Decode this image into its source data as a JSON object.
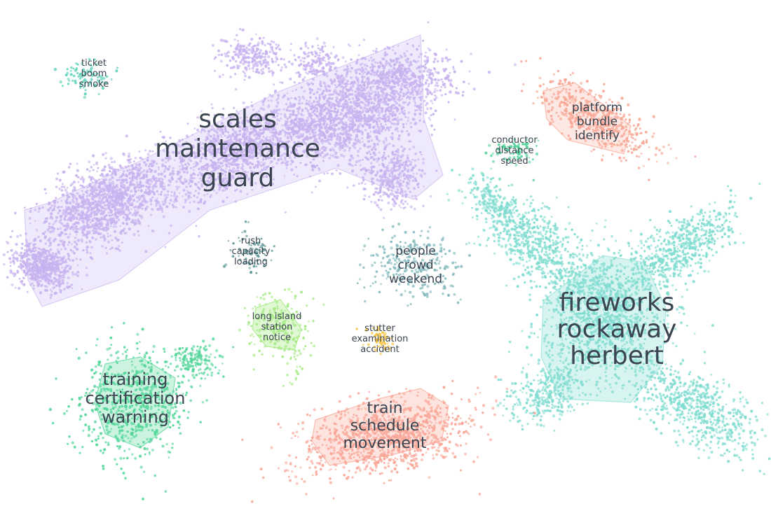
{
  "chart_data": {
    "type": "scatter",
    "grid": false,
    "legend": "none",
    "clusters": [
      {
        "id": "scales",
        "label": [
          "scales",
          "maintenance",
          "guard"
        ],
        "color": "#c7b2ef"
      },
      {
        "id": "ticket",
        "label": [
          "ticket",
          "boom",
          "smoke"
        ],
        "color": "#5fd3bb"
      },
      {
        "id": "platform",
        "label": [
          "platform",
          "bundle",
          "identify"
        ],
        "color": "#f8a592"
      },
      {
        "id": "conductor",
        "label": [
          "conductor",
          "distance",
          "speed"
        ],
        "color": "#4ed29a"
      },
      {
        "id": "rush",
        "label": [
          "rush",
          "capacity",
          "loading"
        ],
        "color": "#5f9a98"
      },
      {
        "id": "people",
        "label": [
          "people",
          "crowd",
          "weekend"
        ],
        "color": "#82b9bd"
      },
      {
        "id": "long-island",
        "label": [
          "long island",
          "station",
          "notice"
        ],
        "color": "#a6ea85"
      },
      {
        "id": "stutter",
        "label": [
          "stutter",
          "examination",
          "accident"
        ],
        "color": "#f9c43e"
      },
      {
        "id": "fireworks",
        "label": [
          "fireworks",
          "rockaway",
          "herbert"
        ],
        "color": "#7fdcd0"
      },
      {
        "id": "training",
        "label": [
          "training",
          "certification",
          "warning"
        ],
        "color": "#52d699"
      },
      {
        "id": "train",
        "label": [
          "train",
          "schedule",
          "movement"
        ],
        "color": "#f9a596"
      }
    ]
  }
}
